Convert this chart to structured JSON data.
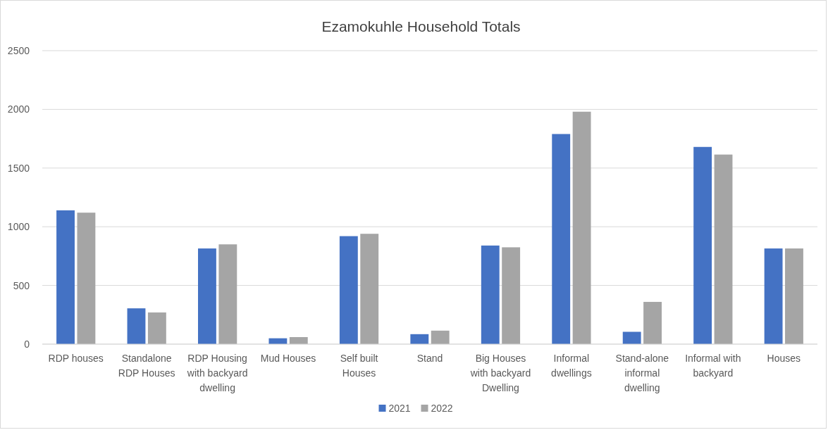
{
  "chart_data": {
    "type": "bar",
    "title": "Ezamokuhle Household Totals",
    "categories": [
      "RDP houses",
      "Standalone RDP Houses",
      "RDP Housing with backyard dwelling",
      "Mud Houses",
      "Self built Houses",
      "Stand",
      "Big Houses with backyard Dwelling",
      "Informal dwellings",
      "Stand-alone informal dwelling",
      "Informal with backyard",
      "Houses"
    ],
    "series": [
      {
        "name": "2021",
        "color": "#4472c4",
        "values": [
          1140,
          305,
          815,
          50,
          920,
          85,
          840,
          1790,
          105,
          1680,
          815
        ]
      },
      {
        "name": "2022",
        "color": "#a5a5a5",
        "values": [
          1120,
          270,
          850,
          60,
          940,
          115,
          825,
          1980,
          360,
          1615,
          815
        ]
      }
    ],
    "ylim": [
      0,
      2500
    ],
    "yticks": [
      0,
      500,
      1000,
      1500,
      2000,
      2500
    ],
    "grid": "y",
    "legend": "bottom"
  }
}
